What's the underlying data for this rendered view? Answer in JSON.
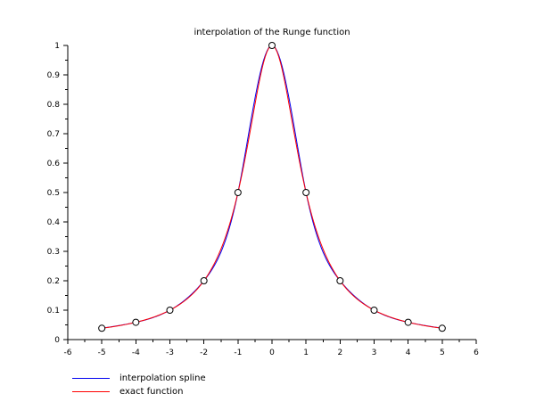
{
  "chart_data": {
    "type": "line",
    "title": "interpolation of the Runge function",
    "xlim": [
      -6,
      6
    ],
    "ylim": [
      0,
      1
    ],
    "x_tick_labels": [
      "-6",
      "-5",
      "-4",
      "-3",
      "-2",
      "-1",
      "0",
      "1",
      "2",
      "3",
      "4",
      "5",
      "6"
    ],
    "y_tick_labels": [
      "0",
      "0.1",
      "0.2",
      "0.3",
      "0.4",
      "0.5",
      "0.6",
      "0.7",
      "0.8",
      "0.9",
      "1"
    ],
    "minor_tick_step_x": 0.5,
    "minor_tick_step_y": 0.05,
    "axis_color": "#000000",
    "background": "#ffffff",
    "series": [
      {
        "name": "interpolation spline",
        "color": "#0000f0",
        "style": "cubic-spline-through-data-points"
      },
      {
        "name": "exact function",
        "color": "#ff0000",
        "formula": "y = 1/(1+x^2)"
      }
    ],
    "data_points": {
      "x": [
        -5,
        -4,
        -3,
        -2,
        -1,
        0,
        1,
        2,
        3,
        4,
        5
      ],
      "y": [
        0.0385,
        0.0588,
        0.1,
        0.2,
        0.5,
        1.0,
        0.5,
        0.2,
        0.1,
        0.0588,
        0.0385
      ]
    },
    "marker": {
      "shape": "circle",
      "fill": "#ffffff",
      "edge": "#000000",
      "radius": 3.5
    },
    "legend_position": "below-plot-left",
    "grid": false
  }
}
